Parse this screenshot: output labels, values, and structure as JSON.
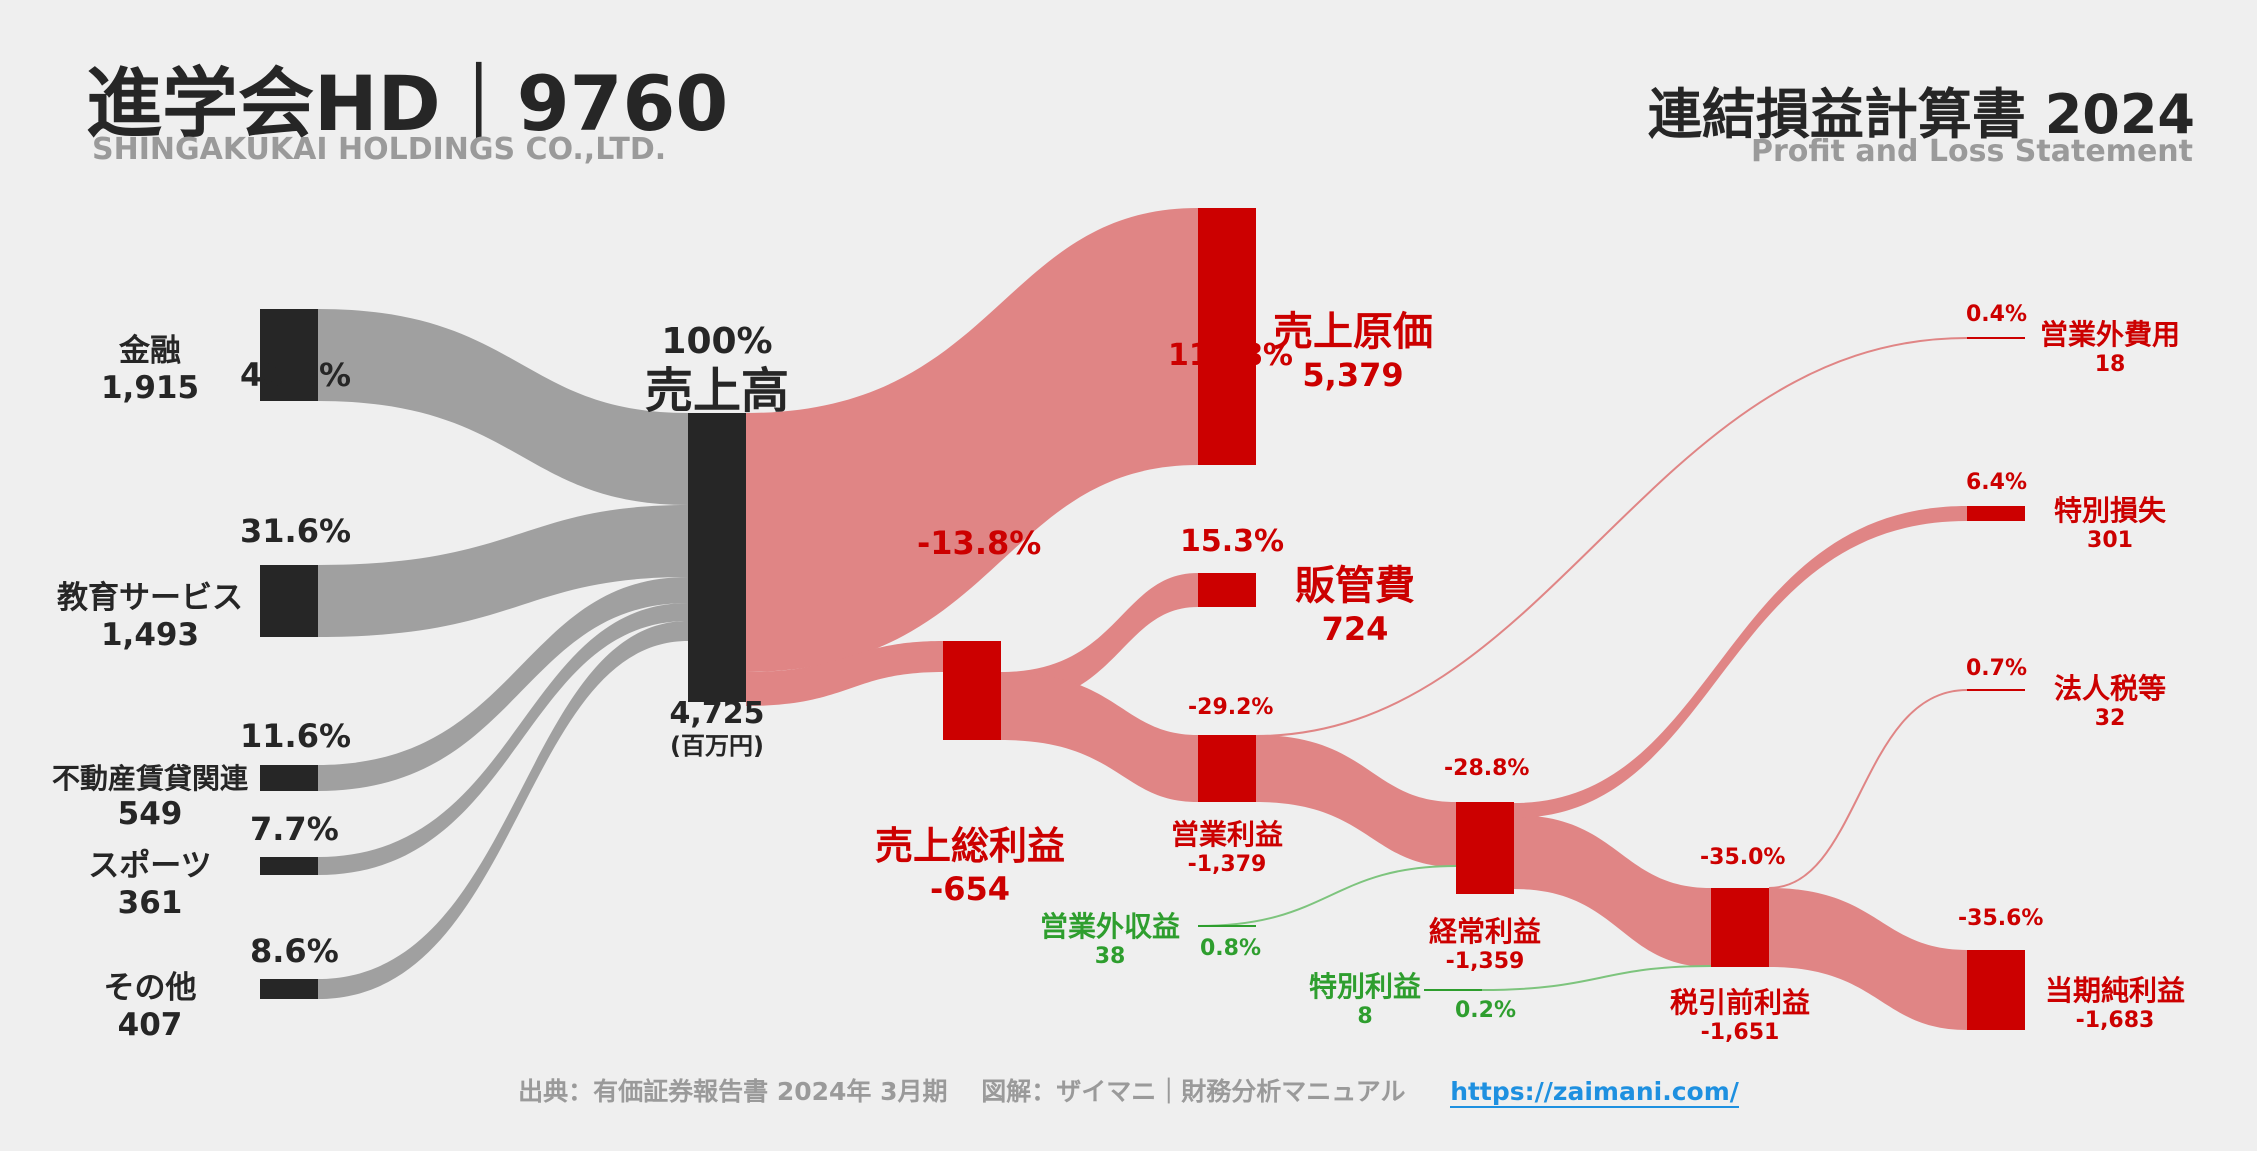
{
  "header": {
    "company": "進学会HD｜9760",
    "company_en": "SHINGAKUKAI HOLDINGS CO.,LTD.",
    "statement": "連結損益計算書 2024",
    "statement_en": "Profit and Loss Statement"
  },
  "revenue_segments": [
    {
      "name": "金融",
      "value": "1,915",
      "pct": "40.5%"
    },
    {
      "name": "教育サービス",
      "value": "1,493",
      "pct": "31.6%"
    },
    {
      "name": "不動産賃貸関連",
      "value": "549",
      "pct": "11.6%"
    },
    {
      "name": "スポーツ",
      "value": "361",
      "pct": "7.7%"
    },
    {
      "name": "その他",
      "value": "407",
      "pct": "8.6%"
    }
  ],
  "revenue": {
    "name": "売上高",
    "pct": "100%",
    "value": "4,725",
    "unit": "(百万円)"
  },
  "cost_of_sales": {
    "name": "売上原価",
    "value": "5,379",
    "pct": "113.8%"
  },
  "gross_profit": {
    "name": "売上総利益",
    "value": "-654",
    "pct": "-13.8%"
  },
  "sga": {
    "name": "販管費",
    "value": "724",
    "pct": "15.3%"
  },
  "operating_income": {
    "name": "営業利益",
    "value": "-1,379",
    "pct": "-29.2%"
  },
  "non_operating_income": {
    "name": "営業外収益",
    "value": "38",
    "pct": "0.8%"
  },
  "non_operating_expense": {
    "name": "営業外費用",
    "value": "18",
    "pct": "0.4%"
  },
  "ordinary_income": {
    "name": "経常利益",
    "value": "-1,359",
    "pct": "-28.8%"
  },
  "extraordinary_income": {
    "name": "特別利益",
    "value": "8",
    "pct": "0.2%"
  },
  "extraordinary_loss": {
    "name": "特別損失",
    "value": "301",
    "pct": "6.4%"
  },
  "pretax_income": {
    "name": "税引前利益",
    "value": "-1,651",
    "pct": "-35.0%"
  },
  "income_tax": {
    "name": "法人税等",
    "value": "32",
    "pct": "0.7%"
  },
  "net_income": {
    "name": "当期純利益",
    "value": "-1,683",
    "pct": "-35.6%"
  },
  "footer": {
    "source": "出典：有価証券報告書 2024年 3月期　 図解：ザイマニ｜財務分析マニュアル",
    "url": "https://zaimani.com/"
  },
  "colors": {
    "segment_bar": "#262626",
    "segment_flow": "#a0a0a0",
    "loss_bar": "#cc0000",
    "loss_flow": "#e08585",
    "gain_flow": "#7dc47d",
    "gain_text": "#2e9e2e"
  }
}
